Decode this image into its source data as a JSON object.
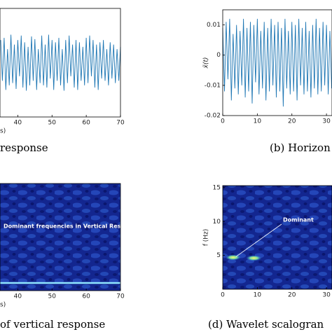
{
  "chart_data": [
    {
      "type": "line",
      "caption": "response",
      "xlabel": "s)",
      "color": "#1f77b4",
      "xlim": [
        34.8,
        70
      ],
      "xticks": [
        40,
        50,
        60,
        70
      ],
      "ylim": [
        -1.2,
        1.2
      ],
      "x": [
        35,
        35.5,
        36,
        36.5,
        37,
        37.5,
        38,
        38.5,
        39,
        39.5,
        40,
        40.5,
        41,
        41.5,
        42,
        42.5,
        43,
        43.5,
        44,
        44.5,
        45,
        45.5,
        46,
        46.5,
        47,
        47.5,
        48,
        48.5,
        49,
        49.5,
        50,
        50.5,
        51,
        51.5,
        52,
        52.5,
        53,
        53.5,
        54,
        54.5,
        55,
        55.5,
        56,
        56.5,
        57,
        57.5,
        58,
        58.5,
        59,
        59.5,
        60,
        60.5,
        61,
        61.5,
        62,
        62.5,
        63,
        63.5,
        64,
        64.5,
        65,
        65.5,
        66,
        66.5,
        67,
        67.5,
        68,
        68.5,
        69,
        69.5,
        70
      ],
      "values": [
        0.5,
        -0.4,
        0.55,
        -0.6,
        0.3,
        -0.5,
        0.62,
        -0.45,
        0.4,
        -0.58,
        0.5,
        -0.3,
        0.6,
        -0.55,
        0.45,
        -0.62,
        0.35,
        -0.5,
        0.58,
        -0.4,
        0.52,
        -0.6,
        0.3,
        -0.45,
        0.6,
        -0.5,
        0.4,
        -0.55,
        0.62,
        -0.35,
        0.5,
        -0.6,
        0.45,
        -0.4,
        0.55,
        -0.5,
        0.3,
        -0.62,
        0.5,
        -0.45,
        0.6,
        -0.3,
        0.4,
        -0.55,
        0.5,
        -0.6,
        0.45,
        -0.4,
        0.35,
        -0.5,
        0.55,
        -0.45,
        0.6,
        -0.3,
        0.5,
        -0.55,
        0.4,
        -0.6,
        0.45,
        -0.35,
        0.5,
        -0.4,
        0.3,
        -0.5,
        0.45,
        -0.35,
        0.4,
        -0.45,
        0.3,
        -0.4,
        0.35
      ]
    },
    {
      "type": "line",
      "caption": "(b) Horizon",
      "ylabel": "x̃(t)",
      "color": "#1f77b4",
      "xlim": [
        0,
        31.6
      ],
      "xticks": [
        0,
        10,
        20,
        30
      ],
      "ylim": [
        -0.02,
        0.015
      ],
      "yticks": [
        -0.02,
        -0.01,
        0,
        0.01
      ],
      "x": [
        0,
        0.5,
        1,
        1.5,
        2,
        2.5,
        3,
        3.5,
        4,
        4.5,
        5,
        5.5,
        6,
        6.5,
        7,
        7.5,
        8,
        8.5,
        9,
        9.5,
        10,
        10.5,
        11,
        11.5,
        12,
        12.5,
        13,
        13.5,
        14,
        14.5,
        15,
        15.5,
        16,
        16.5,
        17,
        17.5,
        18,
        18.5,
        19,
        19.5,
        20,
        20.5,
        21,
        21.5,
        22,
        22.5,
        23,
        23.5,
        24,
        24.5,
        25,
        25.5,
        26,
        26.5,
        27,
        27.5,
        28,
        28.5,
        29,
        29.5,
        30,
        30.5,
        31,
        31.5
      ],
      "values": [
        0.009,
        -0.012,
        0.011,
        -0.008,
        0.012,
        -0.015,
        0.007,
        -0.011,
        0.01,
        -0.013,
        0.008,
        -0.01,
        0.012,
        -0.014,
        0.009,
        -0.012,
        0.011,
        -0.016,
        0.01,
        -0.009,
        0.012,
        -0.013,
        0.008,
        -0.011,
        0.011,
        -0.015,
        0.009,
        -0.012,
        0.012,
        -0.01,
        0.01,
        -0.014,
        0.011,
        -0.012,
        0.009,
        -0.017,
        0.012,
        -0.011,
        0.008,
        -0.013,
        0.011,
        -0.012,
        0.01,
        -0.015,
        0.012,
        -0.01,
        0.009,
        -0.013,
        0.011,
        -0.012,
        0.008,
        -0.014,
        0.01,
        -0.011,
        0.012,
        -0.013,
        0.009,
        -0.012,
        0.011,
        -0.01,
        0.01,
        -0.013,
        0.008,
        -0.011
      ]
    },
    {
      "type": "heatmap",
      "caption": "of vertical response",
      "xlabel": "s)",
      "xlim": [
        34.8,
        70
      ],
      "xticks": [
        40,
        50,
        60,
        70
      ],
      "ylim": [
        0,
        15.3
      ],
      "annotation": "Dominant frequencies in Vertical Response",
      "ridges": [
        {
          "x": [
            34.8,
            70
          ],
          "f": 1.1
        }
      ]
    },
    {
      "type": "heatmap",
      "caption": "(d) Wavelet scalogran",
      "ylabel": "f (Hz)",
      "xlim": [
        0,
        31.6
      ],
      "xticks": [
        0,
        10,
        20,
        30
      ],
      "ylim": [
        0,
        15.3
      ],
      "yticks": [
        5,
        10,
        15
      ],
      "annotation": "Dominant",
      "spots": [
        {
          "x": 3,
          "f": 4.7
        },
        {
          "x": 9,
          "f": 4.6
        }
      ]
    }
  ]
}
